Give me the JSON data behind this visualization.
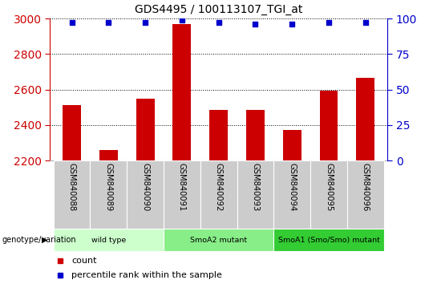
{
  "title": "GDS4495 / 100113107_TGI_at",
  "samples": [
    "GSM840088",
    "GSM840089",
    "GSM840090",
    "GSM840091",
    "GSM840092",
    "GSM840093",
    "GSM840094",
    "GSM840095",
    "GSM840096"
  ],
  "counts": [
    2510,
    2260,
    2550,
    2970,
    2485,
    2485,
    2370,
    2595,
    2665
  ],
  "percentile_ranks": [
    97,
    97,
    97,
    99,
    97,
    96,
    96,
    97,
    97
  ],
  "ylim_left": [
    2200,
    3000
  ],
  "ylim_right": [
    0,
    100
  ],
  "yticks_left": [
    2200,
    2400,
    2600,
    2800,
    3000
  ],
  "yticks_right": [
    0,
    25,
    50,
    75,
    100
  ],
  "bar_color": "#cc0000",
  "dot_color": "#0000cc",
  "groups": [
    {
      "label": "wild type",
      "indices": [
        0,
        1,
        2
      ],
      "color": "#ccffcc"
    },
    {
      "label": "SmoA2 mutant",
      "indices": [
        3,
        4,
        5
      ],
      "color": "#88ee88"
    },
    {
      "label": "SmoA1 (Smo/Smo) mutant",
      "indices": [
        6,
        7,
        8
      ],
      "color": "#33cc33"
    }
  ],
  "group_label": "genotype/variation",
  "legend_count_label": "count",
  "legend_percentile_label": "percentile rank within the sample",
  "left_axis_color": "#cc0000",
  "right_axis_color": "#0000cc",
  "grid_color": "#000000",
  "bar_width": 0.5,
  "tick_area_color": "#cccccc"
}
